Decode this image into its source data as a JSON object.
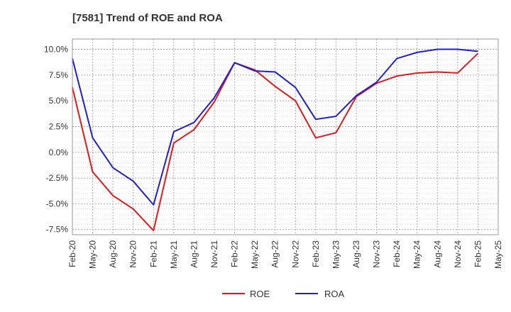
{
  "chart_data": {
    "type": "line",
    "title": "[7581]  Trend of ROE and ROA",
    "xlabel": "",
    "ylabel": "",
    "x": [
      "Feb-20",
      "May-20",
      "Aug-20",
      "Nov-20",
      "Feb-21",
      "May-21",
      "Aug-21",
      "Nov-21",
      "Feb-22",
      "May-22",
      "Aug-22",
      "Nov-22",
      "Feb-23",
      "May-23",
      "Aug-23",
      "Nov-23",
      "Feb-24",
      "May-24",
      "Aug-24",
      "Nov-24",
      "Feb-25",
      "May-25"
    ],
    "yticks": [
      "10.0%",
      "7.5%",
      "5.0%",
      "2.5%",
      "0.0%",
      "-2.5%",
      "-5.0%",
      "-7.5%"
    ],
    "ytick_values": [
      10.0,
      7.5,
      5.0,
      2.5,
      0.0,
      -2.5,
      -5.0,
      -7.5
    ],
    "ylim": [
      -8.0,
      11.0
    ],
    "grid": true,
    "legend_position": "bottom-center",
    "series": [
      {
        "name": "ROE",
        "color": "#e31a1c",
        "values": [
          6.3,
          -1.9,
          -4.2,
          -5.5,
          -7.6,
          0.9,
          2.2,
          4.9,
          8.7,
          8.0,
          6.4,
          5.0,
          1.4,
          1.9,
          5.4,
          6.7,
          7.4,
          7.7,
          7.8,
          7.7,
          9.6,
          null
        ]
      },
      {
        "name": "ROA",
        "color": "#1f1fd6",
        "values": [
          9.1,
          1.4,
          -1.5,
          -2.8,
          -5.1,
          2.0,
          2.9,
          5.3,
          8.7,
          7.9,
          7.8,
          6.3,
          3.2,
          3.5,
          5.5,
          6.8,
          9.1,
          9.7,
          10.0,
          10.0,
          9.8,
          null
        ]
      }
    ]
  }
}
